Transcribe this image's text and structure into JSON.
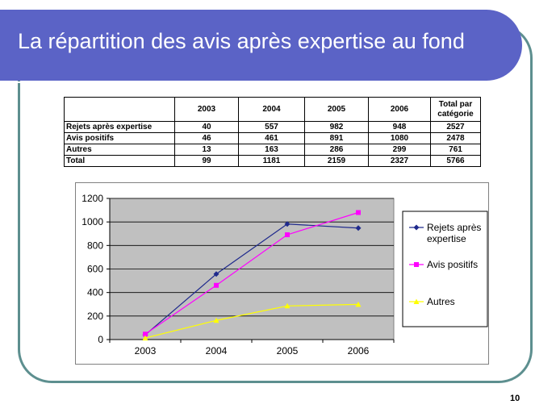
{
  "slide": {
    "title": "La répartition des avis après expertise au fond",
    "page_number": "10",
    "colors": {
      "banner": "#5b63c6",
      "frame": "#5d8f8f",
      "plot_bg": "#c0c0c0"
    }
  },
  "table": {
    "headers": [
      "",
      "2003",
      "2004",
      "2005",
      "2006",
      "Total par catégorie"
    ],
    "rows": [
      {
        "label": "Rejets après expertise",
        "values": [
          "40",
          "557",
          "982",
          "948",
          "2527"
        ]
      },
      {
        "label": "Avis positifs",
        "values": [
          "46",
          "461",
          "891",
          "1080",
          "2478"
        ]
      },
      {
        "label": "Autres",
        "values": [
          "13",
          "163",
          "286",
          "299",
          "761"
        ]
      },
      {
        "label": "Total",
        "values": [
          "99",
          "1181",
          "2159",
          "2327",
          "5766"
        ]
      }
    ]
  },
  "chart_data": {
    "type": "line",
    "categories": [
      "2003",
      "2004",
      "2005",
      "2006"
    ],
    "ylim": [
      0,
      1200
    ],
    "yticks": [
      "0",
      "200",
      "400",
      "600",
      "800",
      "1000",
      "1200"
    ],
    "grid": true,
    "legend_position": "right",
    "series": [
      {
        "name": "Rejets après expertise",
        "values": [
          40,
          557,
          982,
          948
        ],
        "color": "#1f2a8c",
        "marker": "diamond"
      },
      {
        "name": "Avis positifs",
        "values": [
          46,
          461,
          891,
          1080
        ],
        "color": "#ff00ff",
        "marker": "square"
      },
      {
        "name": "Autres",
        "values": [
          13,
          163,
          286,
          299
        ],
        "color": "#ffff00",
        "marker": "triangle"
      }
    ]
  }
}
